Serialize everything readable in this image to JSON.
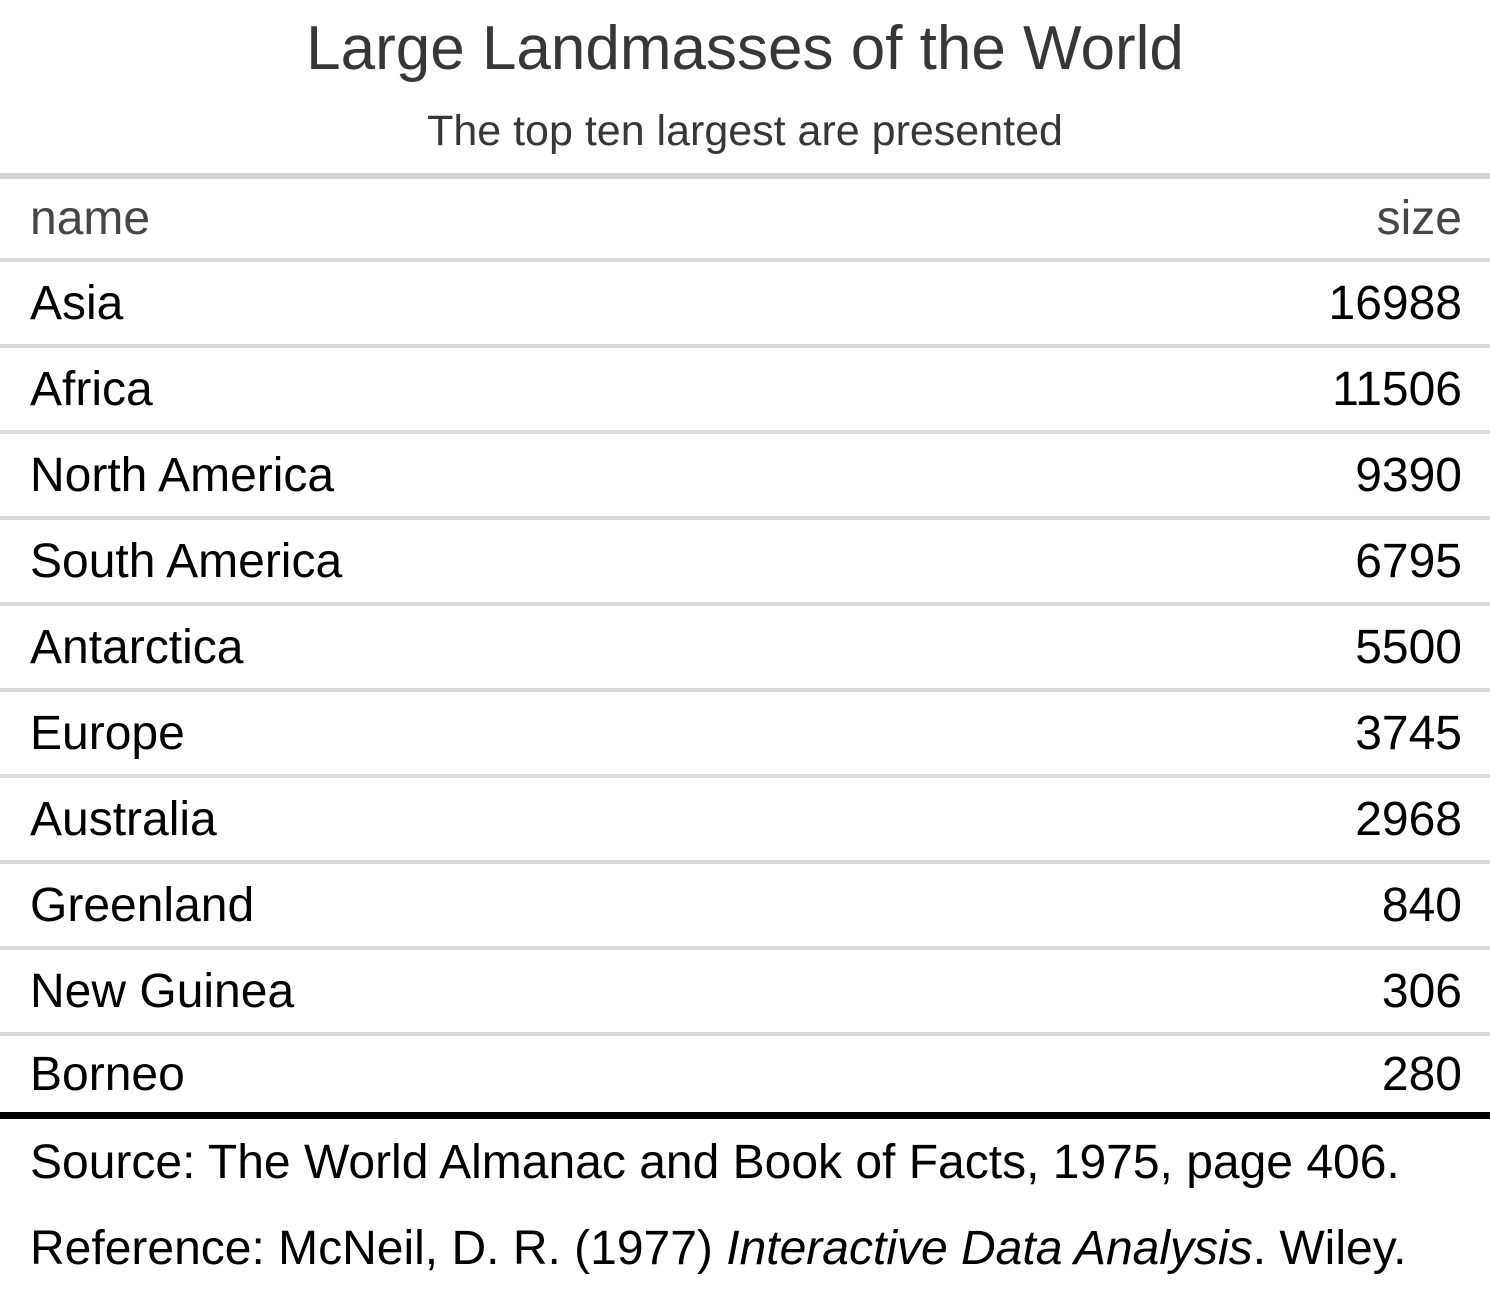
{
  "chart_data": {
    "type": "table",
    "title": "Large Landmasses of the World",
    "subtitle": "The top ten largest are presented",
    "columns": [
      "name",
      "size"
    ],
    "rows": [
      {
        "name": "Asia",
        "size": "16988"
      },
      {
        "name": "Africa",
        "size": "11506"
      },
      {
        "name": "North America",
        "size": "9390"
      },
      {
        "name": "South America",
        "size": "6795"
      },
      {
        "name": "Antarctica",
        "size": "5500"
      },
      {
        "name": "Europe",
        "size": "3745"
      },
      {
        "name": "Australia",
        "size": "2968"
      },
      {
        "name": "Greenland",
        "size": "840"
      },
      {
        "name": "New Guinea",
        "size": "306"
      },
      {
        "name": "Borneo",
        "size": "280"
      }
    ],
    "source_note": "Source: The World Almanac and Book of Facts, 1975, page 406.",
    "reference": {
      "prefix": "Reference: McNeil, D. R. (1977) ",
      "italic": "Interactive Data Analysis",
      "suffix": ". Wiley."
    },
    "layout_hints": {
      "header_align": "center",
      "name_column_align": "left",
      "size_column_align": "right"
    }
  },
  "colors": {
    "background": "#ffffff",
    "title_text": "#373737",
    "column_label_text": "#464646",
    "body_text": "#000000",
    "header_top_border": "#d3d3d3",
    "row_border": "#d9d9d9",
    "table_bottom_border": "#000000"
  }
}
